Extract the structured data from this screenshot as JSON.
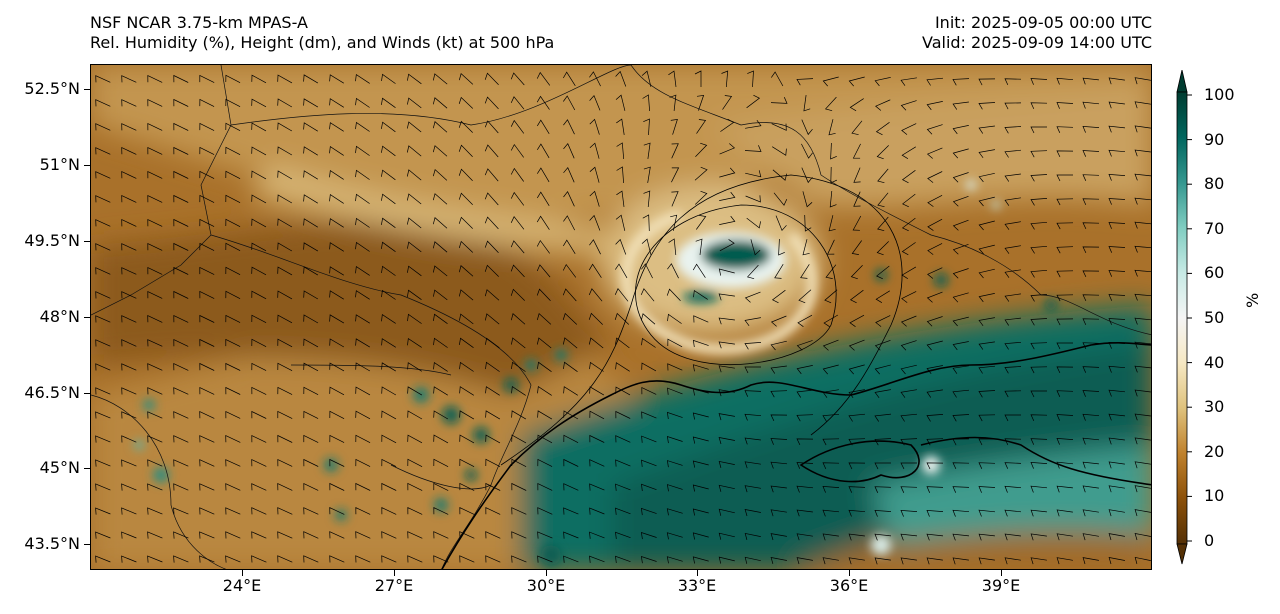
{
  "header": {
    "left_line1": "NSF NCAR 3.75-km MPAS-A",
    "left_line2": "Rel. Humidity (%), Height (dm), and Winds (kt) at 500 hPa",
    "right_line1": "Init: 2025-09-05 00:00 UTC",
    "right_line2": "Valid: 2025-09-09 14:00 UTC"
  },
  "chart_data": {
    "type": "heatmap",
    "field": "Rel. Humidity (%) at 500 hPa",
    "x_ticks": [
      {
        "label": "24°E",
        "lon": 24
      },
      {
        "label": "27°E",
        "lon": 27
      },
      {
        "label": "30°E",
        "lon": 30
      },
      {
        "label": "33°E",
        "lon": 33
      },
      {
        "label": "36°E",
        "lon": 36
      },
      {
        "label": "39°E",
        "lon": 39
      }
    ],
    "y_ticks": [
      {
        "label": "52.5°N",
        "lat": 52.5
      },
      {
        "label": "51°N",
        "lat": 51
      },
      {
        "label": "49.5°N",
        "lat": 49.5
      },
      {
        "label": "48°N",
        "lat": 48
      },
      {
        "label": "46.5°N",
        "lat": 46.5
      },
      {
        "label": "45°N",
        "lat": 45
      },
      {
        "label": "43.5°N",
        "lat": 43.5
      }
    ],
    "xlim": [
      21,
      42
    ],
    "ylim": [
      43,
      53
    ],
    "colorbar": {
      "label": "%",
      "ticks": [
        0,
        10,
        20,
        30,
        40,
        50,
        60,
        70,
        80,
        90,
        100
      ],
      "range": [
        0,
        100
      ],
      "extend": "both",
      "colors": [
        "#543005",
        "#8c510a",
        "#bf812d",
        "#dfc27d",
        "#f6e8c3",
        "#f5f5f5",
        "#c7eae5",
        "#80cdc1",
        "#35978f",
        "#01665e",
        "#003c30"
      ]
    },
    "features": {
      "low_center": {
        "lon": 33.4,
        "lat": 49.3
      },
      "moist_band_note": "high humidity (>70%) over Black Sea region south-east of 47°N"
    }
  }
}
